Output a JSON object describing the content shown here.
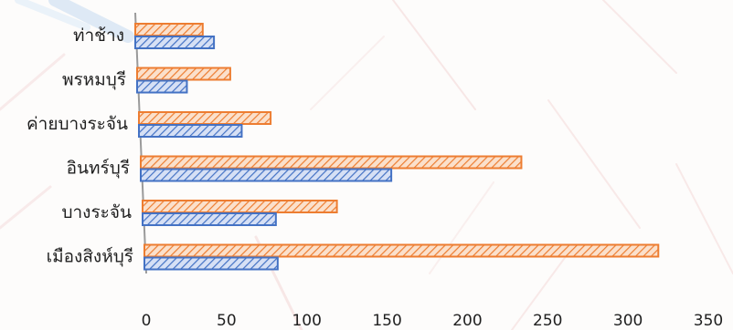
{
  "chart_data": {
    "type": "bar",
    "orientation": "horizontal",
    "title": "",
    "xlabel": "",
    "ylabel": "",
    "categories": [
      "ท่าช้าง",
      "พรหมบุรี",
      "ค่ายบางระจัน",
      "อินทร์บุรี",
      "บางระจัน",
      "เมืองสิงห์บุรี"
    ],
    "series": [
      {
        "color": "#ED7D31",
        "values": [
          42,
          58,
          82,
          237,
          121,
          320
        ]
      },
      {
        "color": "#4472C4",
        "values": [
          49,
          31,
          64,
          156,
          83,
          83
        ]
      }
    ],
    "xlim": [
      0,
      350
    ],
    "xticks": [
      "0",
      "50",
      "100",
      "150",
      "200",
      "250",
      "300",
      "350"
    ],
    "grid": false,
    "legend": "none",
    "bar_style": "hatched"
  }
}
